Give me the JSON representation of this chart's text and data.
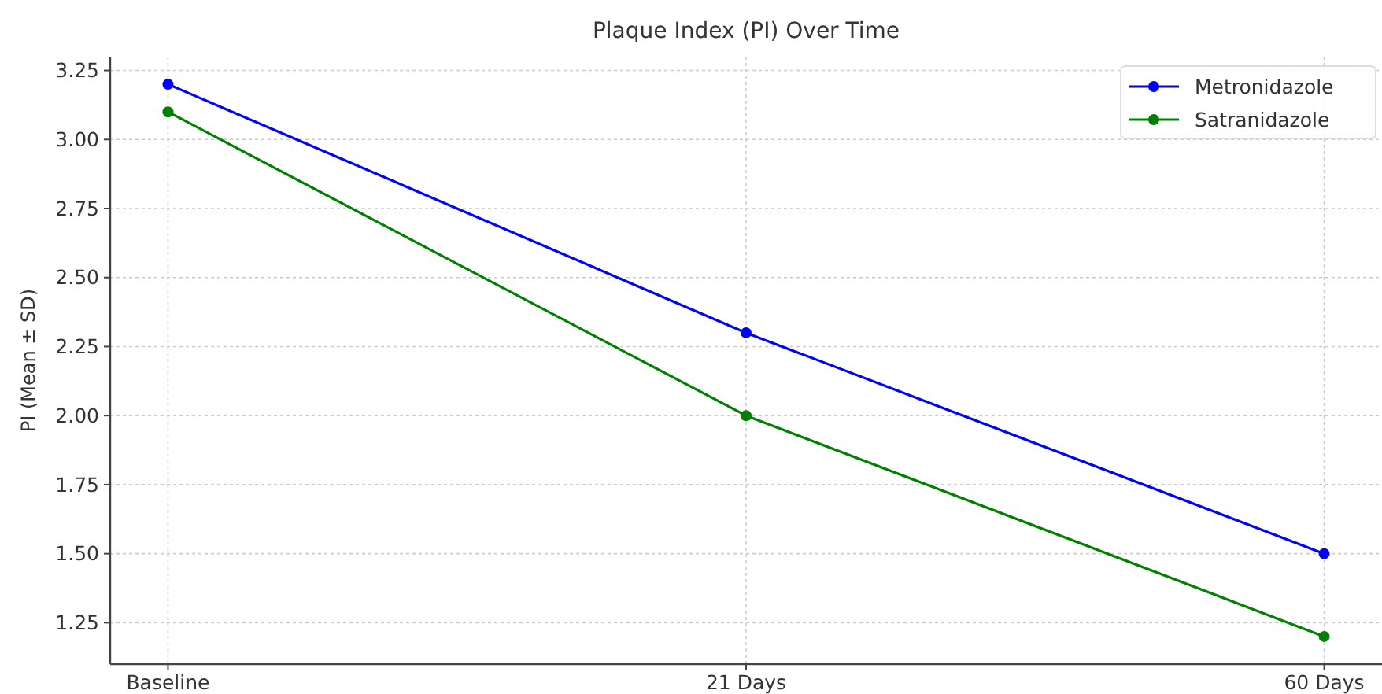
{
  "chart_data": {
    "type": "line",
    "title": "Plaque Index (PI) Over Time",
    "ylabel": "PI (Mean ± SD)",
    "categories": [
      "Baseline",
      "21 Days",
      "60 Days"
    ],
    "series": [
      {
        "name": "Metronidazole",
        "color": "#0000ff",
        "values": [
          3.2,
          2.3,
          1.5
        ]
      },
      {
        "name": "Satranidazole",
        "color": "#008000",
        "values": [
          3.1,
          2.0,
          1.2
        ]
      }
    ],
    "ylim": [
      1.1,
      3.3
    ],
    "yticks": [
      {
        "value": 1.25,
        "label": "1.25"
      },
      {
        "value": 1.5,
        "label": "1.50"
      },
      {
        "value": 1.75,
        "label": "1.75"
      },
      {
        "value": 2,
        "label": "2.00"
      },
      {
        "value": 2.25,
        "label": "2.25"
      },
      {
        "value": 2.5,
        "label": "2.50"
      },
      {
        "value": 2.75,
        "label": "2.75"
      },
      {
        "value": 3,
        "label": "3.00"
      },
      {
        "value": 3.25,
        "label": "3.25"
      }
    ],
    "grid": true,
    "legend": "top right",
    "marker": "circle",
    "line_style": "solid"
  }
}
